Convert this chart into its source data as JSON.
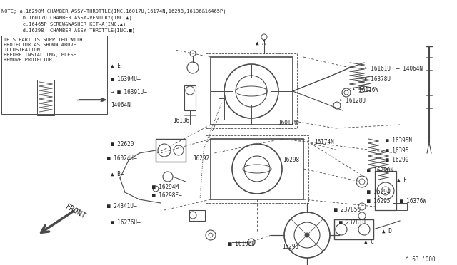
{
  "bg_color": "#ffffff",
  "line_color": "#4a4a4a",
  "text_color": "#2a2a2a",
  "title_note_line1": "NOTE; a.16298M CHAMBER ASSY-THROTTLE(INC.16017U,16174N,16298,16136&16465P)",
  "title_note_line2": "       b.16017U CHAMBER ASSY-VENTURY(INC.▲)",
  "title_note_line3": "       c.16465P SCREW&WASHER KIT-A(INC.▲)",
  "title_note_line4": "       d.16298  CHAMBER ASSY-THROTTLE(INC.■)",
  "warning_text": "THIS PART IS SUPPLIED WITH\nPROTECTOR AS SHOWN ABOVE\nILLUSTRATION.\nBEFORE INSTALLING, PLESE\nREMOVE PROTECTOR.",
  "bottom_right": "^ 63 '000",
  "front_label": "FRONT"
}
